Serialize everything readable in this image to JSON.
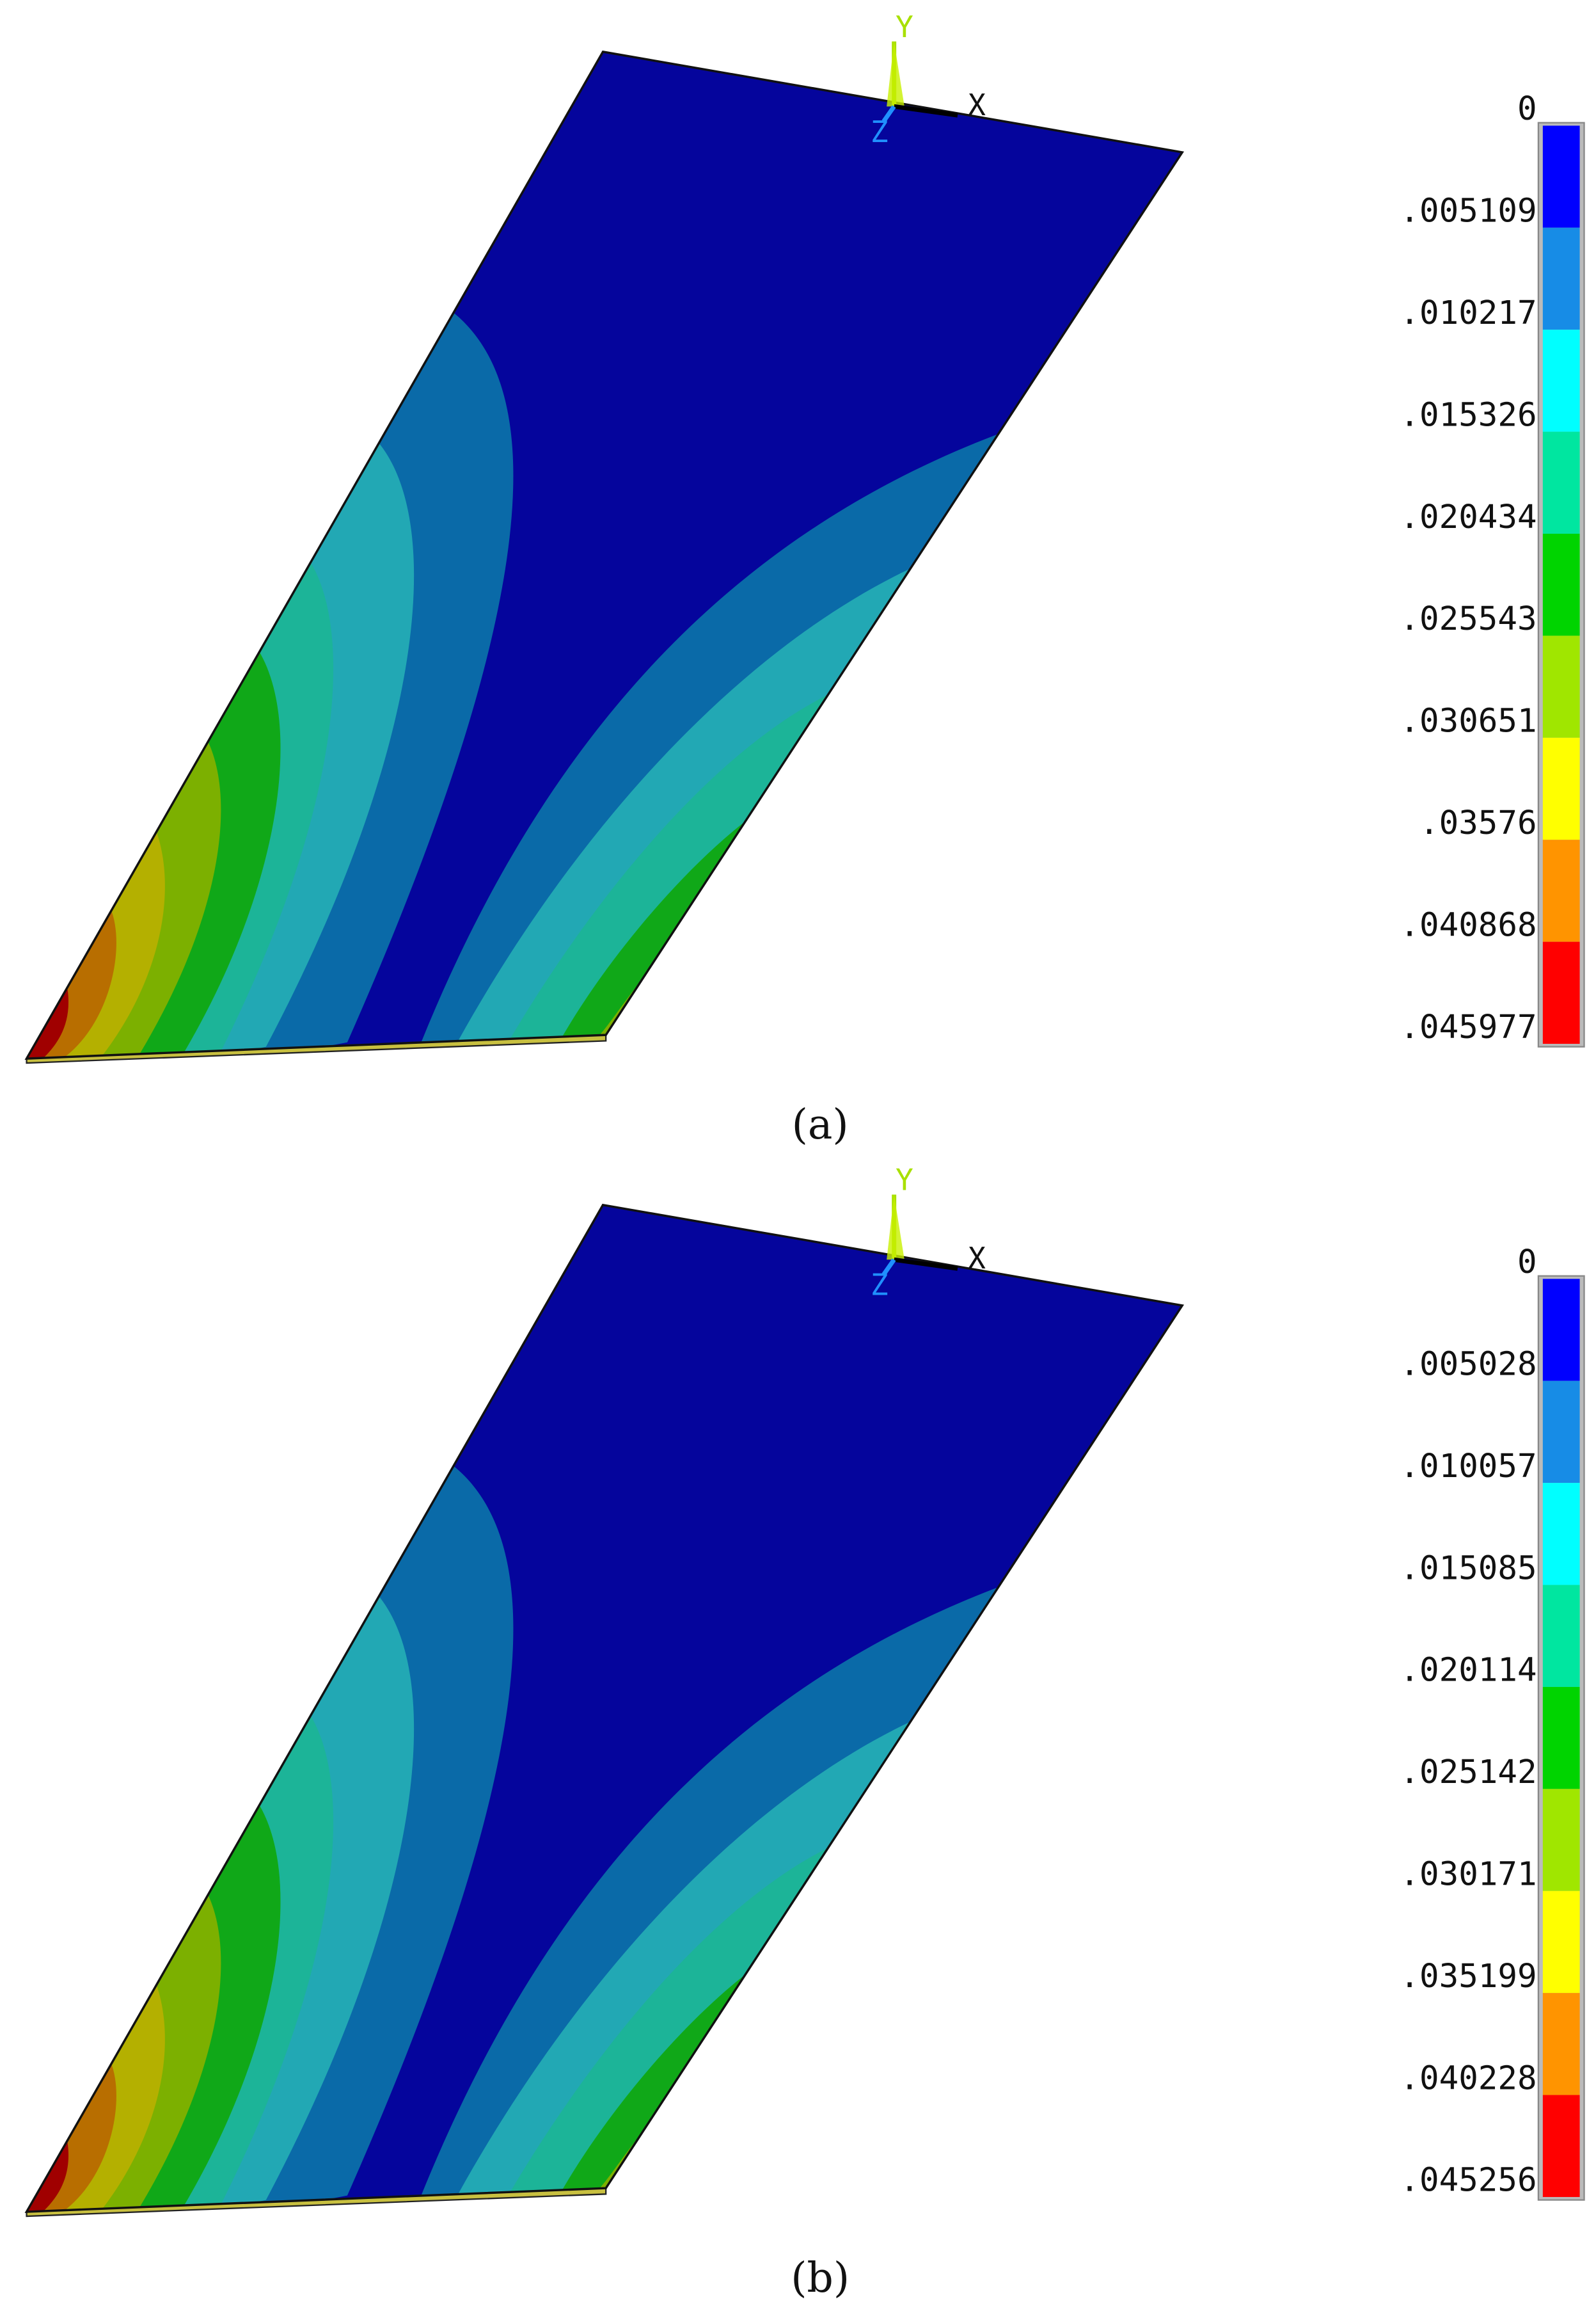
{
  "figure": {
    "legend_colors": [
      "#0000ff",
      "#178ce6",
      "#00ffff",
      "#00e6a0",
      "#00d400",
      "#a0e600",
      "#ffff00",
      "#ff9400",
      "#ff0000"
    ],
    "panels": [
      {
        "caption": "(a)",
        "triad": {
          "x": "X",
          "y": "Y",
          "z": "Z"
        },
        "legend": {
          "labels": [
            "0",
            ".005109",
            ".010217",
            ".015326",
            ".020434",
            ".025543",
            ".030651",
            ".03576",
            ".040868",
            ".045977"
          ]
        }
      },
      {
        "caption": "(b)",
        "triad": {
          "x": "X",
          "y": "Y",
          "z": "Z"
        },
        "legend": {
          "labels": [
            "0",
            ".005028",
            ".010057",
            ".015085",
            ".020114",
            ".025142",
            ".030171",
            ".035199",
            ".040228",
            ".045256"
          ]
        }
      }
    ]
  }
}
